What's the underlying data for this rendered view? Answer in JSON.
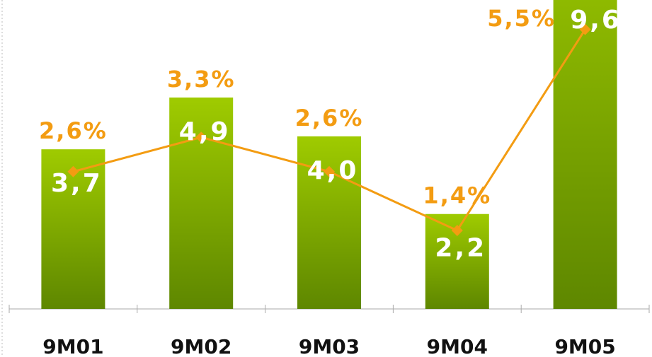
{
  "chart_data": {
    "type": "bar",
    "categories": [
      "9M01",
      "9M02",
      "9M03",
      "9M04",
      "9M05"
    ],
    "series": [
      {
        "values": [
          3.7,
          4.9,
          4.0,
          2.2,
          9.6
        ],
        "value_labels": [
          "3,7",
          "4,9",
          "4,0",
          "2,2",
          "9,6"
        ],
        "color": "#8cb800"
      },
      {
        "type": "line",
        "axis": "y2",
        "values": [
          2.6,
          3.3,
          2.6,
          1.4,
          5.5
        ],
        "value_labels": [
          "2,6%",
          "3,3%",
          "2,6%",
          "1,4%",
          "5,5%"
        ],
        "color": "#f39c12"
      }
    ],
    "ylim": [
      0,
      7.16
    ],
    "y2lim": [
      -0.2,
      6.1
    ]
  }
}
